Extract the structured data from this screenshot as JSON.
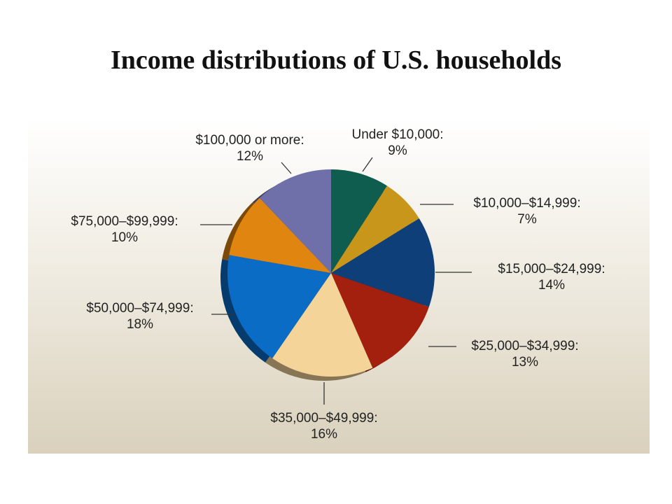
{
  "chart_data": {
    "type": "pie",
    "title": "Income distributions of U.S. households",
    "slices": [
      {
        "label": "Under $10,000:",
        "pct_label": "9%",
        "value": 9,
        "color": "#0e5d4f"
      },
      {
        "label": "$10,000–$14,999:",
        "pct_label": "7%",
        "value": 7,
        "color": "#c8961a"
      },
      {
        "label": "$15,000–$24,999:",
        "pct_label": "14%",
        "value": 14,
        "color": "#0e3f78"
      },
      {
        "label": "$25,000–$34,999:",
        "pct_label": "13%",
        "value": 13,
        "color": "#a3200e"
      },
      {
        "label": "$35,000–$49,999:",
        "pct_label": "16%",
        "value": 16,
        "color": "#f5d49a"
      },
      {
        "label": "$50,000–$74,999:",
        "pct_label": "18%",
        "value": 18,
        "color": "#0b6cc6"
      },
      {
        "label": "$75,000–$99,999:",
        "pct_label": "10%",
        "value": 10,
        "color": "#e0850f"
      },
      {
        "label": "$100,000 or more:",
        "pct_label": "12%",
        "value": 12,
        "color": "#6f70a9"
      }
    ]
  }
}
